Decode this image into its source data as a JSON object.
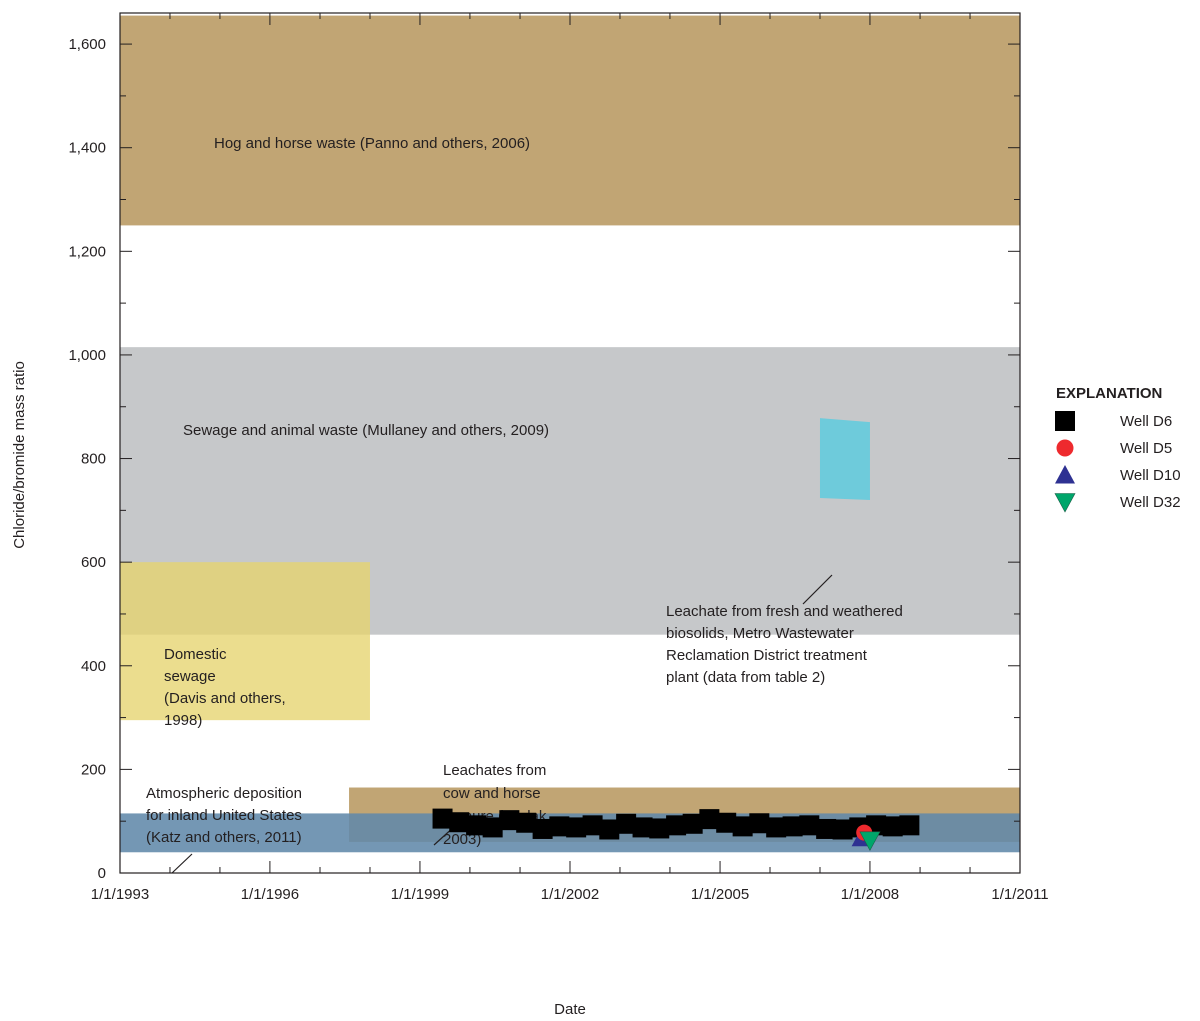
{
  "chart_data": {
    "type": "scatter",
    "xlabel": "Date",
    "ylabel": "Chloride/bromide mass ratio",
    "x_range": [
      "1993-01-01",
      "2011-01-01"
    ],
    "ylim": [
      0,
      1660
    ],
    "x_ticks": [
      {
        "date": "1993-01-01",
        "label": "1/1/1993"
      },
      {
        "date": "1996-01-01",
        "label": "1/1/1996"
      },
      {
        "date": "1999-01-01",
        "label": "1/1/1999"
      },
      {
        "date": "2002-01-01",
        "label": "1/1/2002"
      },
      {
        "date": "2005-01-01",
        "label": "1/1/2005"
      },
      {
        "date": "2008-01-01",
        "label": "1/1/2008"
      },
      {
        "date": "2011-01-01",
        "label": "1/1/2011"
      }
    ],
    "y_ticks": [
      {
        "value": 0,
        "label": "0"
      },
      {
        "value": 200,
        "label": "200"
      },
      {
        "value": 400,
        "label": "400"
      },
      {
        "value": 600,
        "label": "600"
      },
      {
        "value": 800,
        "label": "800"
      },
      {
        "value": 1000,
        "label": "1,000"
      },
      {
        "value": 1200,
        "label": "1,200"
      },
      {
        "value": 1400,
        "label": "1,400"
      },
      {
        "value": 1600,
        "label": "1,600"
      }
    ],
    "ranges": [
      {
        "label": "Hog and horse waste (Panno and others, 2006)",
        "x_from": "1993-01-01",
        "x_to": "2011-01-01",
        "y_from": 1250,
        "y_to": 1655,
        "color": "#c1a574"
      },
      {
        "label": "Sewage and animal waste (Mullaney and others, 2009)",
        "x_from": "1993-01-01",
        "x_to": "2011-01-01",
        "y_from": 460,
        "y_to": 1015,
        "color": "#c6c8ca"
      },
      {
        "label": "Domestic sewage (Davis and others, 1998)",
        "x_from": "1993-01-01",
        "x_to": "1998-01-01",
        "y_from": 295,
        "y_to": 600,
        "color": "#e6d36e"
      },
      {
        "label": "Leachates from cow and horse manure (Hudak, 2003)",
        "x_from": "1997-08-01",
        "x_to": "2011-01-01",
        "y_from": 60,
        "y_to": 165,
        "color": "#c1a574"
      },
      {
        "label": "Atmospheric deposition for inland United States (Katz and others, 2011)",
        "x_from": "1993-01-01",
        "x_to": "2011-01-01",
        "y_from": 40,
        "y_to": 115,
        "color": "#6189aa"
      },
      {
        "label": "Leachate from fresh and weathered biosolids, Metro Wastewater Reclamation District treatment plant (data from table 2)",
        "x_from": "2007-01-01",
        "x_to": "2008-01-01",
        "y_from": 720,
        "y_to": 878,
        "color": "#6ecbdb"
      }
    ],
    "annotations": [
      {
        "lines": [
          "Hog and horse waste (Panno and others, 2006)"
        ]
      },
      {
        "lines": [
          "Sewage and animal waste (Mullaney and others, 2009)"
        ]
      },
      {
        "lines": [
          "Domestic",
          "sewage",
          "(Davis and others,",
          "1998)"
        ]
      },
      {
        "lines": [
          "Leachates from",
          "cow and horse",
          "manure (Hudak,",
          "2003)"
        ]
      },
      {
        "lines": [
          "Atmospheric deposition",
          "for inland United States",
          "(Katz and others, 2011)"
        ]
      },
      {
        "lines": [
          "Leachate from fresh and weathered",
          "biosolids, Metro Wastewater",
          "Reclamation District treatment",
          "plant (data from table 2)"
        ]
      }
    ],
    "series": [
      {
        "name": "Well D6",
        "marker": "square",
        "color": "#000000",
        "points": [
          {
            "x": "1999-06-15",
            "y": 105
          },
          {
            "x": "1999-10-15",
            "y": 98
          },
          {
            "x": "2000-02-15",
            "y": 92
          },
          {
            "x": "2000-06-15",
            "y": 88
          },
          {
            "x": "2000-10-15",
            "y": 102
          },
          {
            "x": "2001-02-15",
            "y": 97
          },
          {
            "x": "2001-06-15",
            "y": 85
          },
          {
            "x": "2001-10-15",
            "y": 90
          },
          {
            "x": "2002-02-15",
            "y": 88
          },
          {
            "x": "2002-06-15",
            "y": 92
          },
          {
            "x": "2002-10-15",
            "y": 84
          },
          {
            "x": "2003-02-15",
            "y": 95
          },
          {
            "x": "2003-06-15",
            "y": 88
          },
          {
            "x": "2003-10-15",
            "y": 86
          },
          {
            "x": "2004-02-15",
            "y": 92
          },
          {
            "x": "2004-06-15",
            "y": 95
          },
          {
            "x": "2004-10-15",
            "y": 104
          },
          {
            "x": "2005-02-15",
            "y": 97
          },
          {
            "x": "2005-06-15",
            "y": 90
          },
          {
            "x": "2005-10-15",
            "y": 96
          },
          {
            "x": "2006-02-15",
            "y": 88
          },
          {
            "x": "2006-06-15",
            "y": 90
          },
          {
            "x": "2006-10-15",
            "y": 92
          },
          {
            "x": "2007-02-15",
            "y": 85
          },
          {
            "x": "2007-06-15",
            "y": 84
          },
          {
            "x": "2007-10-15",
            "y": 88
          },
          {
            "x": "2008-02-15",
            "y": 92
          },
          {
            "x": "2008-06-15",
            "y": 90
          },
          {
            "x": "2008-10-15",
            "y": 92
          }
        ]
      },
      {
        "name": "Well D5",
        "marker": "circle",
        "color": "#ee2a2e",
        "points": [
          {
            "x": "2007-11-20",
            "y": 78
          }
        ]
      },
      {
        "name": "Well D10",
        "marker": "triangle-up",
        "color": "#2e3192",
        "points": [
          {
            "x": "2007-11-01",
            "y": 68
          }
        ]
      },
      {
        "name": "Well D32",
        "marker": "triangle-down",
        "color": "#00a66b",
        "points": [
          {
            "x": "2008-01-01",
            "y": 63
          }
        ]
      }
    ],
    "legend": {
      "title": "EXPLANATION",
      "position": "right"
    }
  }
}
